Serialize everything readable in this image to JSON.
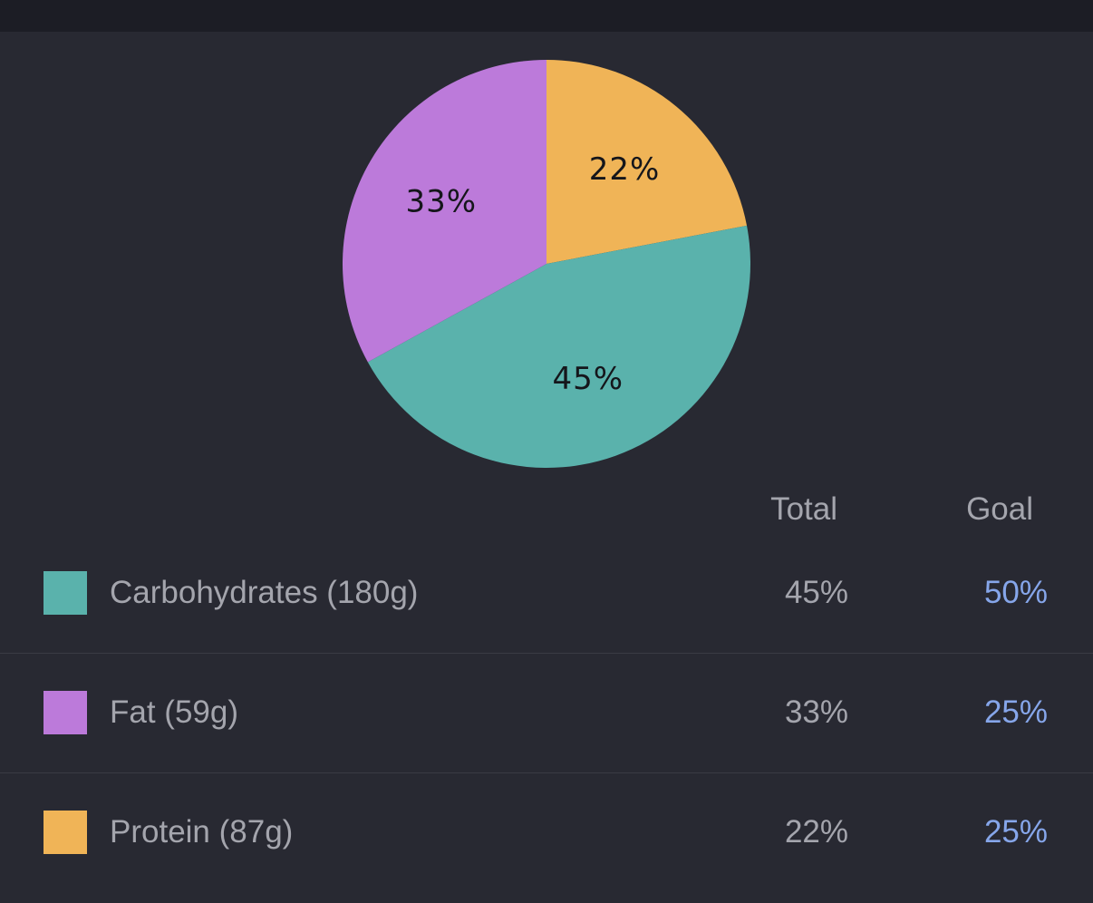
{
  "chart_data": {
    "type": "pie",
    "slices": [
      {
        "label": "Protein",
        "value": 22,
        "value_label": "22%",
        "color": "#f0b457"
      },
      {
        "label": "Carbohydrates",
        "value": 45,
        "value_label": "45%",
        "color": "#5ab2ac"
      },
      {
        "label": "Fat",
        "value": 33,
        "value_label": "33%",
        "color": "#bc7ada"
      }
    ],
    "start_angle_deg": 0,
    "direction": "clockwise"
  },
  "table": {
    "headers": {
      "total": "Total",
      "goal": "Goal"
    },
    "rows": [
      {
        "label": "Carbohydrates (180g)",
        "total": "45%",
        "goal": "50%",
        "color": "#5ab2ac"
      },
      {
        "label": "Fat (59g)",
        "total": "33%",
        "goal": "25%",
        "color": "#bc7ada"
      },
      {
        "label": "Protein (87g)",
        "total": "22%",
        "goal": "25%",
        "color": "#f0b457"
      }
    ]
  }
}
